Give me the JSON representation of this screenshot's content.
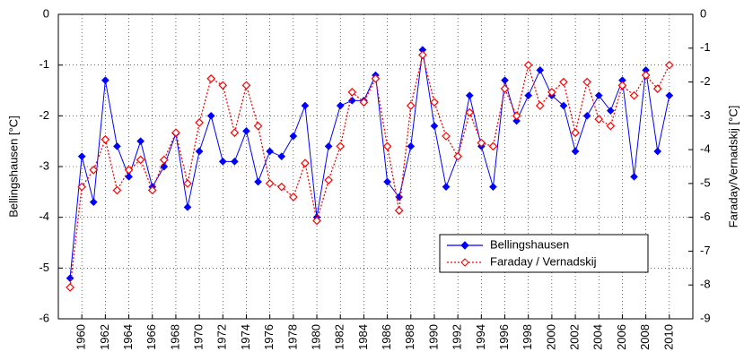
{
  "chart_data": {
    "type": "line",
    "ylabel": "Bellingshausen [°C]",
    "y2label": "Faraday/Vernadskij [°C]",
    "x": [
      1959,
      1960,
      1961,
      1962,
      1963,
      1964,
      1965,
      1966,
      1967,
      1968,
      1969,
      1970,
      1971,
      1972,
      1973,
      1974,
      1975,
      1976,
      1977,
      1978,
      1979,
      1980,
      1981,
      1982,
      1983,
      1984,
      1985,
      1986,
      1987,
      1988,
      1989,
      1990,
      1991,
      1992,
      1993,
      1994,
      1995,
      1996,
      1997,
      1998,
      1999,
      2000,
      2001,
      2002,
      2003,
      2004,
      2005,
      2006,
      2007,
      2008,
      2009,
      2010
    ],
    "series": [
      {
        "name": "Bellingshausen",
        "color": "#0000ff",
        "axis": "y",
        "values": [
          -5.2,
          -2.8,
          -3.7,
          -1.3,
          -2.6,
          -3.2,
          -2.5,
          -3.4,
          -3.0,
          -2.35,
          -3.8,
          -2.7,
          -2.0,
          -2.9,
          -2.9,
          -2.3,
          -3.3,
          -2.7,
          -2.8,
          -2.4,
          -1.8,
          -4.0,
          -2.6,
          -1.8,
          -1.7,
          -1.7,
          -1.2,
          -3.3,
          -3.6,
          -2.6,
          -0.7,
          -2.2,
          -3.4,
          -2.8,
          -1.6,
          -2.6,
          -3.4,
          -1.3,
          -2.1,
          -1.6,
          -1.1,
          -1.6,
          -1.8,
          -2.7,
          -2.0,
          -1.6,
          -1.9,
          -1.3,
          -3.2,
          -1.1,
          -2.7,
          -1.6
        ]
      },
      {
        "name": "Faraday / Vernadskij",
        "color": "#ff0000",
        "axis": "y2",
        "values": [
          -8.07,
          -5.1,
          -4.6,
          -3.7,
          -5.2,
          -4.6,
          -4.3,
          -5.2,
          -4.3,
          -3.5,
          -5.0,
          -3.2,
          -1.9,
          -2.1,
          -3.5,
          -2.1,
          -3.3,
          -5.0,
          -5.1,
          -5.4,
          -4.4,
          -6.1,
          -4.9,
          -3.9,
          -2.3,
          -2.6,
          -1.9,
          -3.9,
          -5.8,
          -2.7,
          -1.2,
          -2.6,
          -3.6,
          -4.2,
          -2.9,
          -3.8,
          -3.9,
          -2.2,
          -3.0,
          -1.5,
          -2.7,
          -2.3,
          -2.0,
          -3.5,
          -2.0,
          -3.1,
          -3.3,
          -2.1,
          -2.4,
          -1.8,
          -2.2,
          -1.5
        ]
      }
    ],
    "xlim": [
      1958,
      2012
    ],
    "xticks": [
      1960,
      1962,
      1964,
      1966,
      1968,
      1970,
      1972,
      1974,
      1976,
      1978,
      1980,
      1982,
      1984,
      1986,
      1988,
      1990,
      1992,
      1994,
      1996,
      1998,
      2000,
      2002,
      2004,
      2006,
      2008,
      2010
    ],
    "ylim": [
      -6,
      0
    ],
    "yticks": [
      -6,
      -5,
      -4,
      -3,
      -2,
      -1,
      0
    ],
    "y2lim": [
      -9,
      0
    ],
    "y2ticks": [
      -9,
      -8,
      -7,
      -6,
      -5,
      -4,
      -3,
      -2,
      -1,
      0
    ],
    "grid": true,
    "legend": "lower right"
  }
}
